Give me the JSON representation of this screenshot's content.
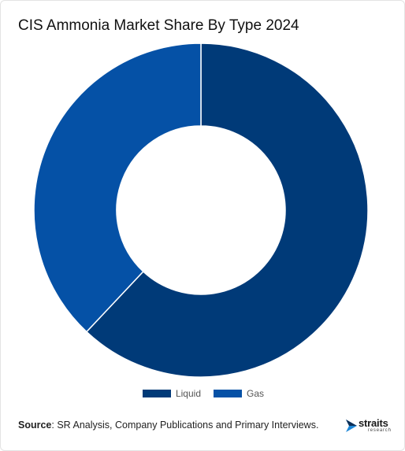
{
  "title": "CIS Ammonia Market Share By Type 2024",
  "chart_data": {
    "type": "pie",
    "subtype": "donut",
    "title": "CIS Ammonia Market Share By Type 2024",
    "categories": [
      "Liquid",
      "Gas"
    ],
    "values": [
      62,
      38
    ],
    "unit": "%",
    "colors": [
      "#003a78",
      "#0551a6"
    ],
    "legend": "bottom-center",
    "start_angle_deg": 0,
    "direction": "clockwise"
  },
  "source": {
    "label": "Source",
    "text": ": SR Analysis, Company Publications and Primary Interviews."
  },
  "logo": {
    "word": "straits",
    "sub": "research",
    "icon": "straits-logo-arrow-icon"
  }
}
